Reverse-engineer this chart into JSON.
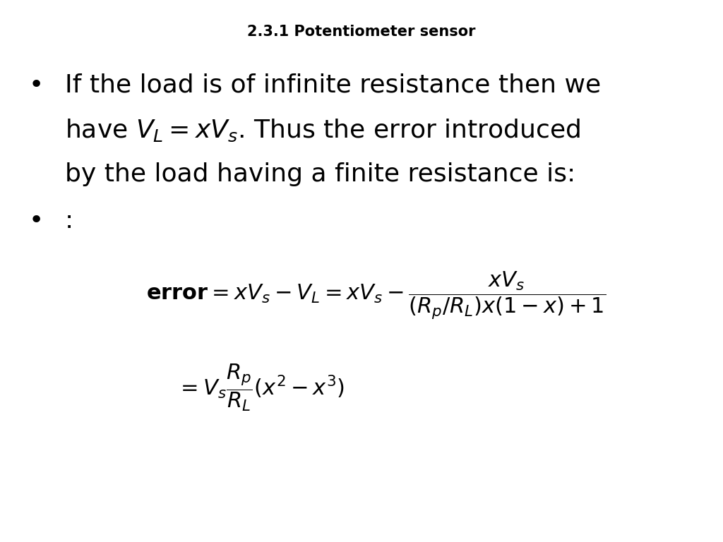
{
  "title": "2.3.1 Potentiometer sensor",
  "title_fontsize": 15,
  "title_fontweight": "bold",
  "bg_color": "#ffffff",
  "text_color": "#000000",
  "bullet1_line1": "If the load is of infinite resistance then we",
  "bullet1_line3": "by the load having a finite resistance is:",
  "bullet2": ":",
  "body_fontsize": 26,
  "eq_fontsize": 22
}
